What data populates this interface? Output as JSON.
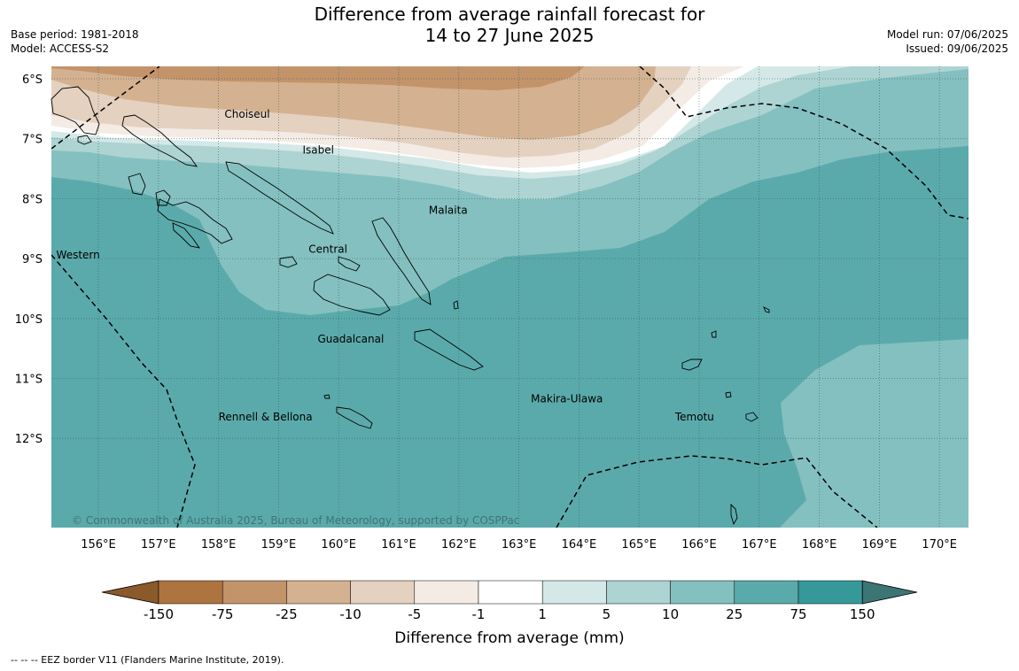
{
  "title": {
    "line1": "Difference from average rainfall forecast for",
    "line2": "14 to 27 June 2025"
  },
  "meta_left": {
    "base_period": "Base period: 1981-2018",
    "model": "Model: ACCESS-S2"
  },
  "meta_right": {
    "model_run": "Model run: 07/06/2025",
    "issued": "Issued: 09/06/2025"
  },
  "map": {
    "lat_labels": [
      "6°S",
      "7°S",
      "8°S",
      "9°S",
      "10°S",
      "11°S",
      "12°S"
    ],
    "lon_labels": [
      "156°E",
      "157°E",
      "158°E",
      "159°E",
      "160°E",
      "161°E",
      "162°E",
      "163°E",
      "164°E",
      "165°E",
      "166°E",
      "167°E",
      "168°E",
      "169°E",
      "170°E"
    ],
    "regions": [
      {
        "name": "Choiseul",
        "lon": 158.1,
        "lat": -6.65
      },
      {
        "name": "Isabel",
        "lon": 159.4,
        "lat": -7.25
      },
      {
        "name": "Malaita",
        "lon": 161.5,
        "lat": -8.25
      },
      {
        "name": "Western",
        "lon": 155.3,
        "lat": -9.0
      },
      {
        "name": "Central",
        "lon": 159.5,
        "lat": -8.9
      },
      {
        "name": "Guadalcanal",
        "lon": 159.65,
        "lat": -10.4
      },
      {
        "name": "Makira-Ulawa",
        "lon": 163.2,
        "lat": -11.4
      },
      {
        "name": "Rennell & Bellona",
        "lon": 158.0,
        "lat": -11.7
      },
      {
        "name": "Temotu",
        "lon": 165.6,
        "lat": -11.7
      }
    ],
    "copyright": "© Commonwealth of Australia 2025, Bureau of Meteorology, supported by COSPPac"
  },
  "colorbar": {
    "ticks": [
      "-150",
      "-75",
      "-25",
      "-10",
      "-5",
      "-1",
      "1",
      "5",
      "10",
      "25",
      "75",
      "150"
    ],
    "colors": [
      "#8b5a2b",
      "#ad7440",
      "#c3936a",
      "#d4b190",
      "#e4d1c0",
      "#f4ebe5",
      "#ffffff",
      "#d4e8e7",
      "#add3d3",
      "#84c0bf",
      "#5baaab",
      "#35999a",
      "#3b7574"
    ],
    "title": "Difference from average (mm)"
  },
  "footnote": "--  --  -- EEZ border V11 (Flanders Marine Institute, 2019)."
}
